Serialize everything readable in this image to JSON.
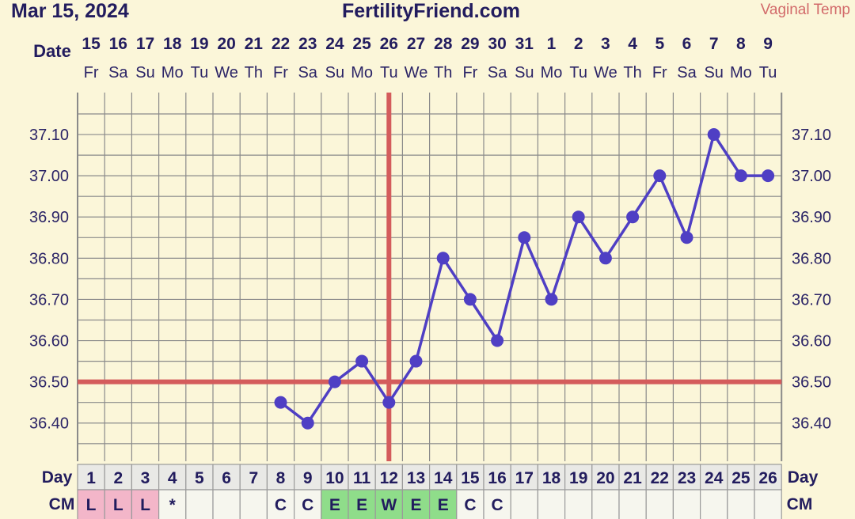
{
  "header": {
    "date": "Mar 15, 2024",
    "site": "FertilityFriend.com",
    "temp_type": "Vaginal Temp"
  },
  "labels": {
    "date": "Date",
    "day": "Day",
    "cm": "CM"
  },
  "colors": {
    "background": "#fbf6d9",
    "temp_line": "#4f3fc4",
    "coverline": "#d45c5c",
    "cm_lubricative": "#f3b6c9",
    "cm_eggwhite": "#8fdd8a",
    "cm_none": "#f6f6ee"
  },
  "chart_data": {
    "type": "line",
    "dates": [
      "15",
      "16",
      "17",
      "18",
      "19",
      "20",
      "21",
      "22",
      "23",
      "24",
      "25",
      "26",
      "27",
      "28",
      "29",
      "30",
      "31",
      "1",
      "2",
      "3",
      "4",
      "5",
      "6",
      "7",
      "8",
      "9"
    ],
    "weekdays": [
      "Fr",
      "Sa",
      "Su",
      "Mo",
      "Tu",
      "We",
      "Th",
      "Fr",
      "Sa",
      "Su",
      "Mo",
      "Tu",
      "We",
      "Th",
      "Fr",
      "Sa",
      "Su",
      "Mo",
      "Tu",
      "We",
      "Th",
      "Fr",
      "Sa",
      "Su",
      "Mo",
      "Tu"
    ],
    "cycle_days": [
      "1",
      "2",
      "3",
      "4",
      "5",
      "6",
      "7",
      "8",
      "9",
      "10",
      "11",
      "12",
      "13",
      "14",
      "15",
      "16",
      "17",
      "18",
      "19",
      "20",
      "21",
      "22",
      "23",
      "24",
      "25",
      "26"
    ],
    "cervical_mucus": [
      "L",
      "L",
      "L",
      "*",
      "",
      "",
      "",
      "C",
      "C",
      "E",
      "E",
      "W",
      "E",
      "E",
      "C",
      "C",
      "",
      "",
      "",
      "",
      "",
      "",
      "",
      "",
      "",
      ""
    ],
    "temperatures": [
      null,
      null,
      null,
      null,
      null,
      null,
      null,
      36.45,
      36.4,
      36.5,
      36.55,
      36.45,
      36.55,
      36.8,
      36.7,
      36.6,
      36.85,
      36.7,
      36.9,
      36.8,
      36.9,
      37.0,
      36.85,
      37.1,
      37.0,
      37.0
    ],
    "y_ticks": [
      "36.40",
      "36.50",
      "36.60",
      "36.70",
      "36.80",
      "36.90",
      "37.00",
      "37.10"
    ],
    "coverline": 36.5,
    "ovulation_day": 12,
    "ylim": [
      36.3,
      37.2
    ],
    "grid": true
  }
}
